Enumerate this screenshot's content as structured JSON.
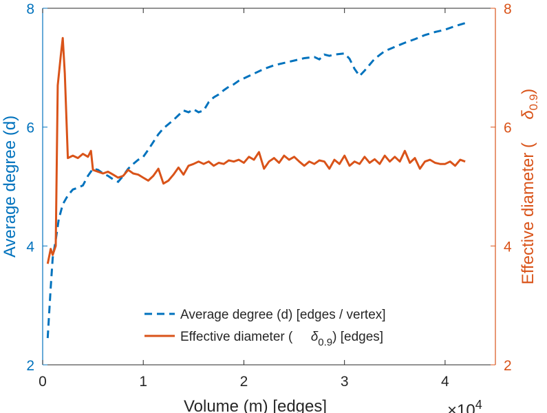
{
  "chart_data": {
    "type": "line",
    "x_axis": {
      "label": "Volume (m) [edges]",
      "range": [
        0,
        4.5
      ],
      "ticks": [
        0,
        1,
        2,
        3,
        4
      ],
      "tick_labels": [
        "0",
        "1",
        "2",
        "3",
        "4"
      ],
      "scale_label": "×10",
      "scale_exponent": "4"
    },
    "y_left": {
      "label": "Average degree (d)",
      "range": [
        2,
        8
      ],
      "ticks": [
        2,
        4,
        6,
        8
      ],
      "tick_labels": [
        "2",
        "4",
        "6",
        "8"
      ],
      "color": "#0072BD"
    },
    "y_right": {
      "label_prefix": "Effective diameter (",
      "label_symbol": "δ",
      "label_subscript": "0.9",
      "label_suffix": ")",
      "range": [
        2,
        8
      ],
      "ticks": [
        2,
        4,
        6,
        8
      ],
      "tick_labels": [
        "2",
        "4",
        "6",
        "8"
      ],
      "color": "#D95319"
    },
    "legend": [
      {
        "label": "Average degree (d) [edges / vertex]"
      },
      {
        "label_prefix": "Effective diameter (",
        "symbol": "δ",
        "subscript": "0.9",
        "label_suffix": ") [edges]"
      }
    ],
    "series": [
      {
        "name": "Average degree (d) [edges / vertex]",
        "axis": "left",
        "style": "dashed",
        "color": "#0072BD",
        "x": [
          0.05,
          0.08,
          0.1,
          0.13,
          0.16,
          0.2,
          0.25,
          0.3,
          0.35,
          0.4,
          0.45,
          0.5,
          0.55,
          0.6,
          0.65,
          0.7,
          0.75,
          0.8,
          0.85,
          0.9,
          0.95,
          1.0,
          1.05,
          1.1,
          1.15,
          1.2,
          1.25,
          1.3,
          1.35,
          1.4,
          1.45,
          1.5,
          1.55,
          1.6,
          1.65,
          1.7,
          1.75,
          1.8,
          1.85,
          1.9,
          1.95,
          2.0,
          2.1,
          2.2,
          2.3,
          2.4,
          2.5,
          2.6,
          2.7,
          2.75,
          2.8,
          2.85,
          2.9,
          3.0,
          3.05,
          3.1,
          3.15,
          3.2,
          3.25,
          3.3,
          3.4,
          3.5,
          3.6,
          3.7,
          3.8,
          3.9,
          4.0,
          4.1,
          4.2
        ],
        "y": [
          2.45,
          3.3,
          3.8,
          4.1,
          4.45,
          4.7,
          4.85,
          4.95,
          4.98,
          5.02,
          5.18,
          5.3,
          5.28,
          5.22,
          5.18,
          5.12,
          5.08,
          5.18,
          5.3,
          5.38,
          5.45,
          5.5,
          5.62,
          5.75,
          5.88,
          5.98,
          6.05,
          6.12,
          6.2,
          6.28,
          6.25,
          6.3,
          6.25,
          6.28,
          6.42,
          6.5,
          6.55,
          6.62,
          6.68,
          6.72,
          6.78,
          6.82,
          6.9,
          6.98,
          7.04,
          7.08,
          7.12,
          7.16,
          7.18,
          7.14,
          7.22,
          7.2,
          7.22,
          7.24,
          7.15,
          6.98,
          6.86,
          6.95,
          7.05,
          7.15,
          7.28,
          7.35,
          7.42,
          7.48,
          7.55,
          7.6,
          7.64,
          7.7,
          7.75
        ]
      },
      {
        "name": "Effective diameter (δ0.9) [edges]",
        "axis": "right",
        "style": "solid",
        "color": "#D95319",
        "x": [
          0.05,
          0.08,
          0.1,
          0.13,
          0.15,
          0.18,
          0.2,
          0.22,
          0.25,
          0.3,
          0.35,
          0.4,
          0.45,
          0.48,
          0.5,
          0.55,
          0.6,
          0.65,
          0.7,
          0.75,
          0.8,
          0.85,
          0.9,
          0.95,
          1.0,
          1.05,
          1.1,
          1.15,
          1.2,
          1.25,
          1.3,
          1.35,
          1.4,
          1.45,
          1.5,
          1.55,
          1.6,
          1.65,
          1.7,
          1.75,
          1.8,
          1.85,
          1.9,
          1.95,
          2.0,
          2.05,
          2.1,
          2.15,
          2.2,
          2.25,
          2.3,
          2.35,
          2.4,
          2.45,
          2.5,
          2.55,
          2.6,
          2.65,
          2.7,
          2.75,
          2.8,
          2.85,
          2.9,
          2.95,
          3.0,
          3.05,
          3.1,
          3.15,
          3.2,
          3.25,
          3.3,
          3.35,
          3.4,
          3.45,
          3.5,
          3.55,
          3.6,
          3.65,
          3.7,
          3.75,
          3.8,
          3.85,
          3.9,
          3.95,
          4.0,
          4.05,
          4.1,
          4.15,
          4.2
        ],
        "y": [
          3.7,
          3.95,
          3.85,
          4.0,
          6.7,
          7.2,
          7.5,
          6.9,
          5.48,
          5.52,
          5.48,
          5.55,
          5.5,
          5.6,
          5.28,
          5.25,
          5.22,
          5.25,
          5.2,
          5.15,
          5.18,
          5.28,
          5.22,
          5.2,
          5.15,
          5.1,
          5.18,
          5.3,
          5.05,
          5.1,
          5.2,
          5.32,
          5.2,
          5.35,
          5.38,
          5.42,
          5.38,
          5.42,
          5.35,
          5.4,
          5.38,
          5.44,
          5.42,
          5.45,
          5.4,
          5.5,
          5.45,
          5.58,
          5.3,
          5.42,
          5.48,
          5.4,
          5.52,
          5.45,
          5.5,
          5.42,
          5.35,
          5.42,
          5.38,
          5.44,
          5.42,
          5.3,
          5.45,
          5.38,
          5.52,
          5.35,
          5.42,
          5.38,
          5.5,
          5.4,
          5.46,
          5.38,
          5.52,
          5.42,
          5.5,
          5.42,
          5.6,
          5.4,
          5.48,
          5.3,
          5.42,
          5.45,
          5.4,
          5.38,
          5.38,
          5.42,
          5.35,
          5.45,
          5.42
        ]
      }
    ]
  }
}
